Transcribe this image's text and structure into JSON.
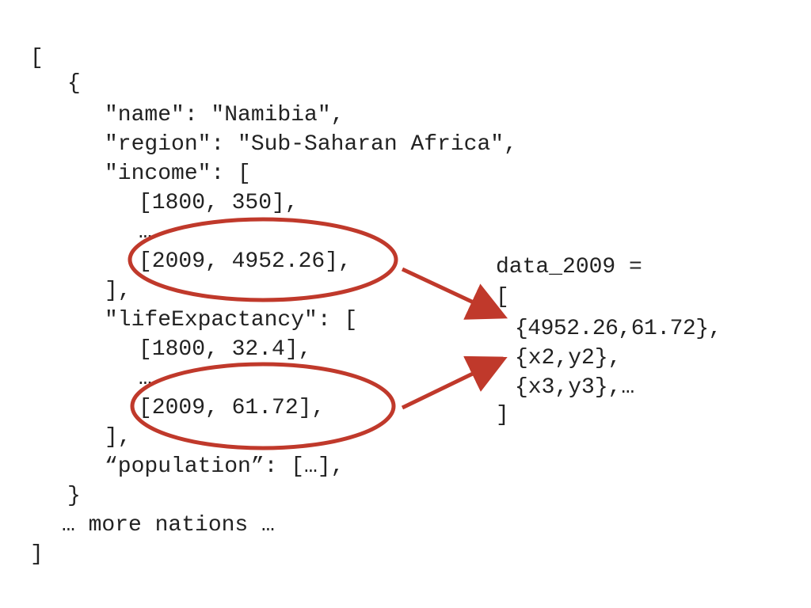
{
  "json_lines": [
    "[",
    "{",
    "\"name\": \"Namibia\",",
    "\"region\": \"Sub-Saharan Africa\",",
    "\"income\": [",
    "[1800, 350],",
    "…",
    "[2009, 4952.26],",
    "],",
    "\"lifeExpactancy\": [",
    "[1800, 32.4],",
    "…",
    "[2009, 61.72],",
    "],",
    "“population”: […],",
    "}",
    "… more nations …",
    "]"
  ],
  "result_lines": [
    "data_2009 =",
    "[",
    "{4952.26,61.72},",
    "{x2,y2},",
    "{x3,y3},…",
    "]"
  ],
  "colors": {
    "text": "#222222",
    "highlight": "#c0392b"
  }
}
